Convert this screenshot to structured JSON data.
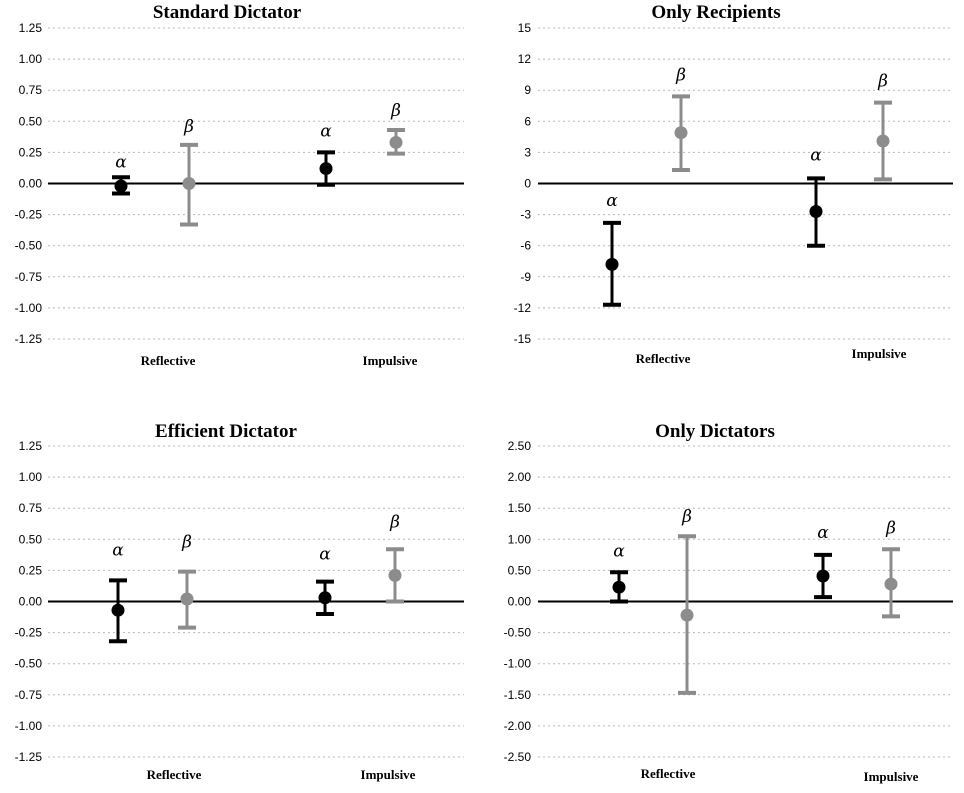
{
  "colors": {
    "alpha_series": "#000000",
    "beta_series": "#8c8c8c",
    "gridline": "#b8b8b8",
    "axis": "#000000"
  },
  "chart_data": [
    {
      "id": "standard-dictator",
      "type": "scatter",
      "title": "Standard Dictator",
      "xlabel": "",
      "ylabel": "",
      "grid": true,
      "ylim": [
        -1.25,
        1.25
      ],
      "yticks": [
        1.25,
        1.0,
        0.75,
        0.5,
        0.25,
        0.0,
        -0.25,
        -0.5,
        -0.75,
        -1.0,
        -1.25
      ],
      "ytick_labels": [
        "1.25",
        "1.00",
        "0.75",
        "0.50",
        "0.25",
        "0.00",
        "-0.25",
        "-0.50",
        "-0.75",
        "-1.00",
        "-1.25"
      ],
      "categories": [
        "Reflective",
        "Impulsive"
      ],
      "series": [
        {
          "name": "alpha",
          "label": "α",
          "color": "#000000",
          "values": [
            -0.02,
            0.12
          ],
          "error_low": [
            -0.08,
            -0.01
          ],
          "error_high": [
            0.05,
            0.25
          ]
        },
        {
          "name": "beta",
          "label": "β",
          "color": "#8c8c8c",
          "values": [
            0.0,
            0.33
          ],
          "error_low": [
            -0.33,
            0.24
          ],
          "error_high": [
            0.31,
            0.43
          ]
        }
      ]
    },
    {
      "id": "only-recipients",
      "type": "scatter",
      "title": "Only Recipients",
      "xlabel": "",
      "ylabel": "",
      "grid": true,
      "ylim": [
        -15,
        15
      ],
      "yticks": [
        15,
        12,
        9,
        6,
        3,
        0,
        -3,
        -6,
        -9,
        -12,
        -15
      ],
      "ytick_labels": [
        "15",
        "12",
        "9",
        "6",
        "3",
        "0",
        "-3",
        "-6",
        "-9",
        "-12",
        "-15"
      ],
      "categories": [
        "Reflective",
        "Impulsive"
      ],
      "series": [
        {
          "name": "alpha",
          "label": "α",
          "color": "#000000",
          "values": [
            -7.8,
            -2.7
          ],
          "error_low": [
            -11.7,
            -6.0
          ],
          "error_high": [
            -3.8,
            0.5
          ]
        },
        {
          "name": "beta",
          "label": "β",
          "color": "#8c8c8c",
          "values": [
            4.9,
            4.1
          ],
          "error_low": [
            1.3,
            0.4
          ],
          "error_high": [
            8.4,
            7.8
          ]
        }
      ]
    },
    {
      "id": "efficient-dictator",
      "type": "scatter",
      "title": "Efficient Dictator",
      "xlabel": "",
      "ylabel": "",
      "grid": true,
      "ylim": [
        -1.25,
        1.25
      ],
      "yticks": [
        1.25,
        1.0,
        0.75,
        0.5,
        0.25,
        0.0,
        -0.25,
        -0.5,
        -0.75,
        -1.0,
        -1.25
      ],
      "ytick_labels": [
        "1.25",
        "1.00",
        "0.75",
        "0.50",
        "0.25",
        "0.00",
        "-0.25",
        "-0.50",
        "-0.75",
        "-1.00",
        "-1.25"
      ],
      "categories": [
        "Reflective",
        "Impulsive"
      ],
      "series": [
        {
          "name": "alpha",
          "label": "α",
          "color": "#000000",
          "values": [
            -0.07,
            0.03
          ],
          "error_low": [
            -0.32,
            -0.1
          ],
          "error_high": [
            0.17,
            0.16
          ]
        },
        {
          "name": "beta",
          "label": "β",
          "color": "#8c8c8c",
          "values": [
            0.02,
            0.21
          ],
          "error_low": [
            -0.21,
            0.0
          ],
          "error_high": [
            0.24,
            0.42
          ]
        }
      ]
    },
    {
      "id": "only-dictators",
      "type": "scatter",
      "title": "Only Dictators",
      "xlabel": "",
      "ylabel": "",
      "grid": true,
      "ylim": [
        -2.5,
        2.5
      ],
      "yticks": [
        2.5,
        2.0,
        1.5,
        1.0,
        0.5,
        0.0,
        -0.5,
        -1.0,
        -1.5,
        -2.0,
        -2.5
      ],
      "ytick_labels": [
        "2.50",
        "2.00",
        "1.50",
        "1.00",
        "0.50",
        "0.00",
        "-0.50",
        "-1.00",
        "-1.50",
        "-2.00",
        "-2.50"
      ],
      "categories": [
        "Reflective",
        "Impulsive"
      ],
      "series": [
        {
          "name": "alpha",
          "label": "α",
          "color": "#000000",
          "values": [
            0.23,
            0.41
          ],
          "error_low": [
            0.0,
            0.07
          ],
          "error_high": [
            0.47,
            0.75
          ]
        },
        {
          "name": "beta",
          "label": "β",
          "color": "#8c8c8c",
          "values": [
            -0.22,
            0.28
          ],
          "error_low": [
            -1.47,
            -0.24
          ],
          "error_high": [
            1.05,
            0.84
          ]
        }
      ]
    }
  ]
}
